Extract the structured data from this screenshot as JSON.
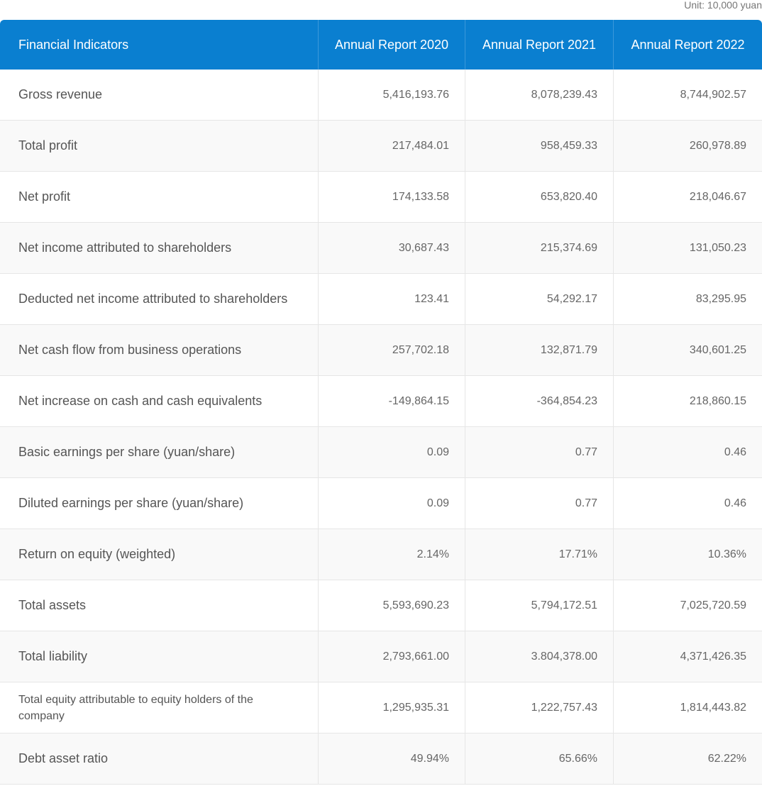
{
  "unit": "Unit: 10,000 yuan",
  "table": {
    "headers": [
      "Financial Indicators",
      "Annual Report 2020",
      "Annual Report 2021",
      "Annual Report 2022"
    ],
    "rows": [
      [
        "Gross revenue",
        "5,416,193.76",
        "8,078,239.43",
        "8,744,902.57"
      ],
      [
        "Total profit",
        "217,484.01",
        "958,459.33",
        "260,978.89"
      ],
      [
        "Net profit",
        "174,133.58",
        "653,820.40",
        "218,046.67"
      ],
      [
        "Net income attributed to shareholders",
        "30,687.43",
        "215,374.69",
        "131,050.23"
      ],
      [
        "Deducted net income attributed to shareholders",
        "123.41",
        "54,292.17",
        "83,295.95"
      ],
      [
        "Net cash flow from business operations",
        "257,702.18",
        "132,871.79",
        "340,601.25"
      ],
      [
        "Net increase on cash and cash equivalents",
        "-149,864.15",
        "-364,854.23",
        "218,860.15"
      ],
      [
        "Basic earnings per share (yuan/share)",
        "0.09",
        "0.77",
        "0.46"
      ],
      [
        "Diluted earnings per share (yuan/share)",
        "0.09",
        "0.77",
        "0.46"
      ],
      [
        "Return on equity (weighted)",
        "2.14%",
        "17.71%",
        "10.36%"
      ],
      [
        "Total assets",
        "5,593,690.23",
        "5,794,172.51",
        "7,025,720.59"
      ],
      [
        "Total liability",
        "2,793,661.00",
        "3.804,378.00",
        "4,371,426.35"
      ],
      [
        "Total equity attributable to equity holders of the company",
        "1,295,935.31",
        "1,222,757.43",
        "1,814,443.82"
      ],
      [
        "Debt asset ratio",
        "49.94%",
        "65.66%",
        "62.22%"
      ]
    ]
  }
}
